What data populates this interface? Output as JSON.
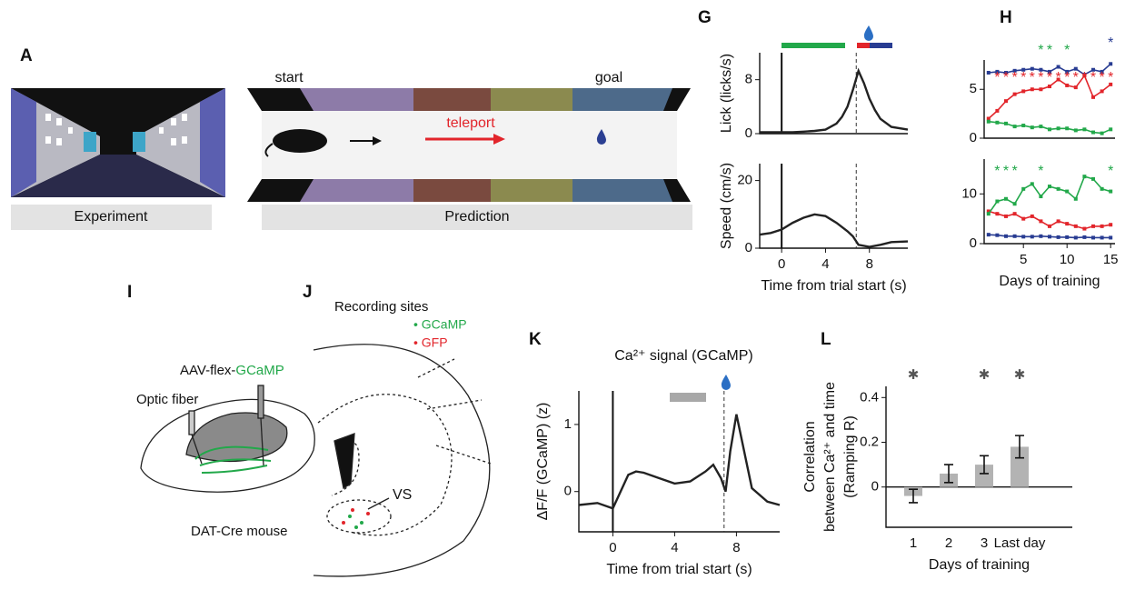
{
  "panels": {
    "letters": [
      "A",
      "G",
      "H",
      "I",
      "J",
      "K",
      "L"
    ]
  },
  "panel_a": {
    "start": "start",
    "goal": "goal",
    "teleport": "teleport",
    "experiment": "Experiment",
    "prediction": "Prediction"
  },
  "panel_i": {
    "aav": "AAV-flex-",
    "gcamp": "GCaMP",
    "fiber": "Optic fiber",
    "mouse": "DAT-Cre mouse"
  },
  "panel_j": {
    "title": "Recording sites",
    "legend": [
      "• GCaMP",
      "• GFP"
    ],
    "region": "VS"
  },
  "chart_data": [
    {
      "type": "line",
      "ylabel": "Lick (licks/s)",
      "xlim": [
        -2,
        11.5
      ],
      "ylim": [
        0,
        12
      ],
      "yticks": [
        0,
        8
      ],
      "reward_time": 6.8,
      "x": [
        -2,
        -1,
        0,
        1,
        2,
        3,
        4,
        5,
        5.5,
        6,
        6.5,
        7,
        7.5,
        8,
        8.5,
        9,
        10,
        11.5
      ],
      "series": [
        {
          "name": "Lick",
          "color": "#222",
          "values": [
            0.2,
            0.2,
            0.2,
            0.2,
            0.3,
            0.4,
            0.6,
            1.5,
            2.5,
            4,
            6.5,
            9.3,
            7.5,
            5.2,
            3.5,
            2.2,
            1,
            0.6
          ]
        }
      ]
    },
    {
      "type": "line",
      "ylabel": "Speed (cm/s)",
      "xlabel": "Time from trial start (s)",
      "xlim": [
        -2,
        11.5
      ],
      "ylim": [
        0,
        25
      ],
      "xticks": [
        0,
        4,
        8
      ],
      "yticks": [
        0,
        20
      ],
      "reward_time": 6.8,
      "x": [
        -2,
        -1,
        0,
        1,
        2,
        3,
        4,
        5,
        6,
        6.5,
        7,
        8,
        9,
        10,
        11.5
      ],
      "series": [
        {
          "name": "Speed",
          "color": "#222",
          "values": [
            4,
            4.5,
            5.5,
            7.5,
            9,
            10,
            9.5,
            7.5,
            5,
            3.5,
            1,
            0.4,
            1,
            1.8,
            2
          ]
        }
      ]
    },
    {
      "type": "line",
      "xlim": [
        0.5,
        15.5
      ],
      "ylim": [
        0,
        8
      ],
      "yticks": [
        0,
        5
      ],
      "markers": true,
      "star_label": "*",
      "x": [
        1,
        2,
        3,
        4,
        5,
        6,
        7,
        8,
        9,
        10,
        11,
        12,
        13,
        14,
        15
      ],
      "series": [
        {
          "name": "Blue",
          "color": "#283c92",
          "values": [
            6.7,
            6.8,
            6.7,
            6.9,
            7,
            7.1,
            7,
            6.8,
            7.3,
            6.8,
            7.1,
            6.5,
            7,
            6.8,
            7.6
          ]
        },
        {
          "name": "Red",
          "color": "#e2252b",
          "values": [
            2,
            2.8,
            3.8,
            4.5,
            4.8,
            5,
            5,
            5.3,
            6,
            5.4,
            5.2,
            6.4,
            4.2,
            4.8,
            5.5
          ]
        },
        {
          "name": "Green",
          "color": "#22a84a",
          "values": [
            1.7,
            1.6,
            1.5,
            1.2,
            1.3,
            1.1,
            1.2,
            0.9,
            1,
            1,
            0.8,
            0.9,
            0.6,
            0.5,
            0.9
          ]
        }
      ],
      "stars": [
        {
          "color": "#e2252b",
          "days": [
            2,
            3,
            4,
            5,
            6,
            7,
            8,
            9,
            10,
            11,
            12,
            13,
            14,
            15
          ]
        },
        {
          "color": "#22a84a",
          "days": [
            7,
            8,
            10
          ]
        },
        {
          "color": "#283c92",
          "days": [
            15
          ]
        }
      ]
    },
    {
      "type": "line",
      "xlabel": "Days of training",
      "xlim": [
        0.5,
        15.5
      ],
      "ylim": [
        0,
        17
      ],
      "xticks": [
        5,
        10,
        15
      ],
      "yticks": [
        0,
        10
      ],
      "markers": true,
      "star_label": "*",
      "x": [
        1,
        2,
        3,
        4,
        5,
        6,
        7,
        8,
        9,
        10,
        11,
        12,
        13,
        14,
        15
      ],
      "series": [
        {
          "name": "Blue",
          "color": "#283c92",
          "values": [
            1.8,
            1.7,
            1.5,
            1.5,
            1.4,
            1.4,
            1.5,
            1.4,
            1.3,
            1.3,
            1.2,
            1.3,
            1.2,
            1.2,
            1.2
          ]
        },
        {
          "name": "Red",
          "color": "#e2252b",
          "values": [
            6.5,
            6,
            5.5,
            6,
            5,
            5.5,
            4.5,
            3.5,
            4.5,
            4,
            3.5,
            3,
            3.5,
            3.5,
            3.8
          ]
        },
        {
          "name": "Green",
          "color": "#22a84a",
          "values": [
            6,
            8.5,
            9,
            8,
            11,
            12,
            9.5,
            11.5,
            11,
            10.5,
            9,
            13.5,
            13,
            11,
            10.5
          ]
        }
      ],
      "stars": [
        {
          "color": "#22a84a",
          "days": [
            2,
            3,
            4,
            7,
            15
          ]
        }
      ]
    },
    {
      "type": "line",
      "title": "Ca²⁺ signal (GCaMP)",
      "ylabel": "ΔF/F (GCaMP) (z)",
      "xlabel": "Time from trial start (s)",
      "xlim": [
        -2.2,
        10.8
      ],
      "ylim": [
        -0.6,
        1.5
      ],
      "xticks": [
        0,
        4,
        8
      ],
      "yticks": [
        0,
        1
      ],
      "reward_time": 7.2,
      "x": [
        -2.2,
        -1,
        0,
        0.5,
        1,
        1.5,
        2,
        3,
        4,
        5,
        6,
        6.5,
        7,
        7.3,
        7.6,
        8,
        8.5,
        9,
        10,
        10.8
      ],
      "series": [
        {
          "name": "GCaMP",
          "color": "#222",
          "values": [
            -0.2,
            -0.17,
            -0.25,
            0,
            0.25,
            0.3,
            0.28,
            0.2,
            0.12,
            0.15,
            0.3,
            0.4,
            0.2,
            0,
            0.6,
            1.15,
            0.6,
            0.05,
            -0.15,
            -0.2
          ]
        }
      ]
    },
    {
      "type": "bar",
      "ylabel": [
        "Correlation",
        "between Ca²⁺ and time",
        "(Ramping R)"
      ],
      "xlabel": "Days of training",
      "star_label": "✱",
      "categories": [
        "1",
        "2",
        "3",
        "Last day"
      ],
      "values": [
        -0.04,
        0.06,
        0.1,
        0.18
      ],
      "errors": [
        0.03,
        0.04,
        0.04,
        0.05
      ],
      "color": "#b3b3b3",
      "ylim": [
        -0.18,
        0.45
      ],
      "yticks": [
        0,
        0.2,
        0.4
      ],
      "stars": [
        0,
        2,
        3
      ]
    }
  ]
}
